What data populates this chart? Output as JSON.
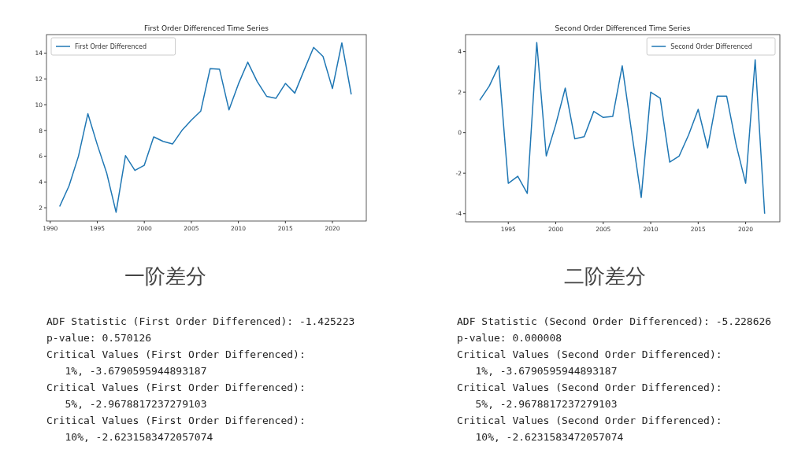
{
  "chart_data": [
    {
      "type": "line",
      "title": "First Order Differenced Time Series",
      "x": [
        1991,
        1992,
        1993,
        1994,
        1995,
        1996,
        1997,
        1998,
        1999,
        2000,
        2001,
        2002,
        2003,
        2004,
        2005,
        2006,
        2007,
        2008,
        2009,
        2010,
        2011,
        2012,
        2013,
        2014,
        2015,
        2016,
        2017,
        2018,
        2019,
        2020,
        2021,
        2022
      ],
      "series": [
        {
          "name": "First Order Differenced",
          "color": "#1f77b4",
          "values": [
            2.1,
            3.7,
            6.0,
            9.3,
            6.9,
            4.7,
            1.65,
            6.05,
            4.9,
            5.3,
            7.5,
            7.15,
            6.95,
            8.0,
            8.8,
            9.5,
            12.8,
            12.75,
            9.6,
            11.6,
            13.3,
            11.8,
            10.65,
            10.5,
            11.65,
            10.9,
            12.7,
            14.45,
            13.75,
            11.25,
            14.8,
            10.8
          ]
        }
      ],
      "xlim": [
        1989.6,
        2023.6
      ],
      "ylim": [
        0.97,
        15.44
      ],
      "xticks": [
        1990,
        1995,
        2000,
        2005,
        2010,
        2015,
        2020
      ],
      "yticks": [
        2,
        4,
        6,
        8,
        10,
        12,
        14
      ],
      "legend": "top left",
      "grid": false,
      "annotations": [
        "一阶差分",
        "ADF Statistic (First Order Differenced): -1.425223",
        "p-value: 0.570126",
        "Critical Values (First Order Differenced):",
        "   1%, -3.6790595944893187",
        "Critical Values (First Order Differenced):",
        "   5%, -2.9678817237279103",
        "Critical Values (First Order Differenced):",
        "   10%, -2.6231583472057074"
      ]
    },
    {
      "type": "line",
      "title": "Second Order Differenced Time Series",
      "x": [
        1992,
        1993,
        1994,
        1995,
        1996,
        1997,
        1998,
        1999,
        2000,
        2001,
        2002,
        2003,
        2004,
        2005,
        2006,
        2007,
        2008,
        2009,
        2010,
        2011,
        2012,
        2013,
        2014,
        2015,
        2016,
        2017,
        2018,
        2019,
        2020,
        2021,
        2022
      ],
      "series": [
        {
          "name": "Second Order Differenced",
          "color": "#1f77b4",
          "values": [
            1.6,
            2.3,
            3.3,
            -2.5,
            -2.15,
            -3.0,
            4.45,
            -1.15,
            0.4,
            2.2,
            -0.3,
            -0.2,
            1.05,
            0.75,
            0.8,
            3.3,
            0.0,
            -3.2,
            2.0,
            1.7,
            -1.45,
            -1.15,
            -0.1,
            1.15,
            -0.75,
            1.8,
            1.8,
            -0.6,
            -2.5,
            3.6,
            -4.0
          ]
        }
      ],
      "xlim": [
        1990.5,
        2023.6
      ],
      "ylim": [
        -4.4,
        4.84
      ],
      "xticks": [
        1995,
        2000,
        2005,
        2010,
        2015,
        2020
      ],
      "yticks": [
        -4,
        -2,
        0,
        2,
        4
      ],
      "legend": "top right",
      "grid": false,
      "annotations": [
        "二阶差分",
        "ADF Statistic (Second Order Differenced): -5.228626",
        "p-value: 0.000008",
        "Critical Values (Second Order Differenced):",
        "   1%, -3.6790595944893187",
        "Critical Values (Second Order Differenced):",
        "   5%, -2.9678817237279103",
        "Critical Values (Second Order Differenced):",
        "   10%, -2.6231583472057074"
      ]
    }
  ]
}
